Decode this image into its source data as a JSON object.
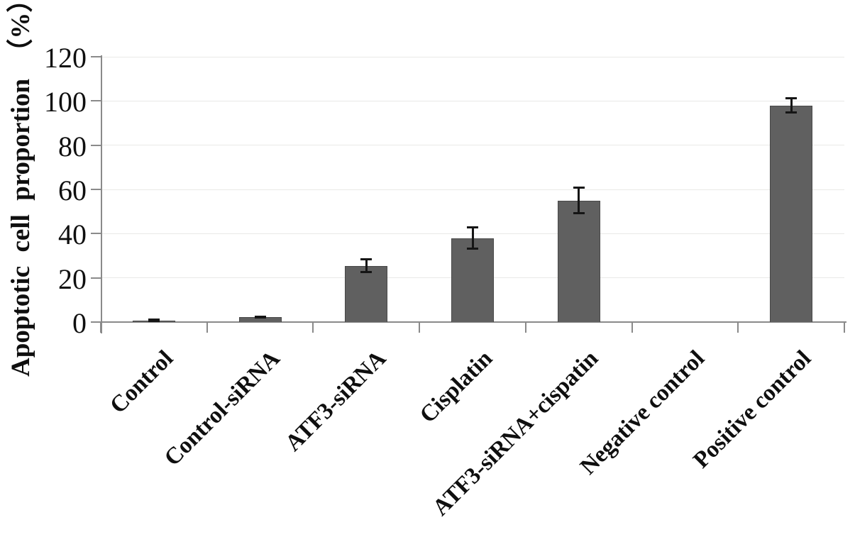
{
  "chart_data": {
    "type": "bar",
    "title": "",
    "xlabel": "",
    "ylabel": "Apoptotic cell proportion （%）",
    "ylim": [
      0,
      120
    ],
    "yticks": [
      0,
      20,
      40,
      60,
      80,
      100,
      120
    ],
    "grid": true,
    "legend": false,
    "categories": [
      "Control",
      "Control-siRNA",
      "ATF3-siRNA",
      "Cisplatin",
      "ATF3-siRNA+cispatin",
      "Negative control",
      "Positive control"
    ],
    "values": [
      0.8,
      2.2,
      25.5,
      38,
      55,
      0,
      98
    ],
    "errors": [
      0.4,
      0.4,
      3,
      5,
      6,
      0,
      3.5
    ],
    "bar_color": "#606060",
    "bar_border_color": "#484848",
    "error_color": "#151515",
    "axis_color": "#8a8a8a",
    "gridline_color": "#e9e9e7",
    "text_color": "#0f0f0f"
  }
}
